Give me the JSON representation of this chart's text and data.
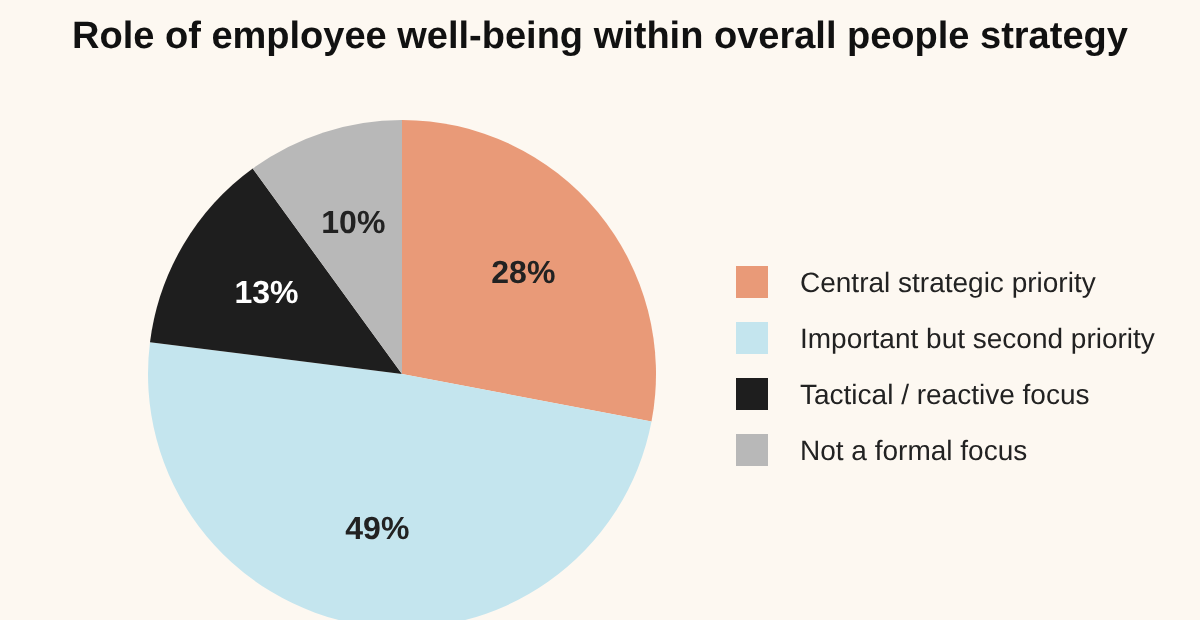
{
  "chart_data": {
    "type": "pie",
    "title": "Role of employee well-being within overall people strategy",
    "categories": [
      "Central strategic priority",
      "Important but second priority",
      "Tactical / reactive focus",
      "Not a formal focus"
    ],
    "values": [
      28,
      49,
      13,
      10
    ],
    "colors": [
      "#e99a78",
      "#c4e5ee",
      "#1e1e1e",
      "#b8b8b8"
    ],
    "value_labels": [
      "28%",
      "49%",
      "13%",
      "10%"
    ],
    "legend": "right"
  }
}
